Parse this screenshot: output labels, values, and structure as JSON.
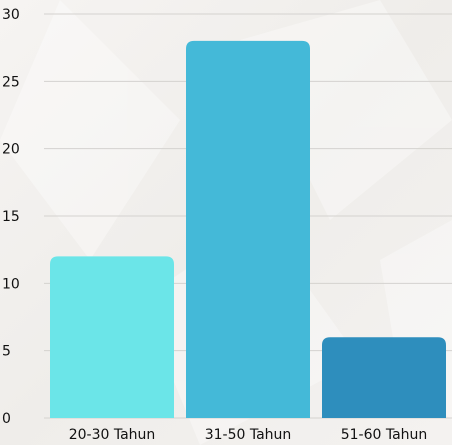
{
  "chart_data": {
    "type": "bar",
    "categories": [
      "20-30 Tahun",
      "31-50 Tahun",
      "51-60 Tahun"
    ],
    "values": [
      12,
      28,
      6
    ],
    "ylim": [
      0,
      30
    ],
    "yticks": [
      0,
      5,
      10,
      15,
      20,
      25,
      30
    ],
    "grid": true,
    "colors": [
      "#6be5e8",
      "#44b9d8",
      "#2e8ebd"
    ],
    "background": "#f3f1ef"
  }
}
